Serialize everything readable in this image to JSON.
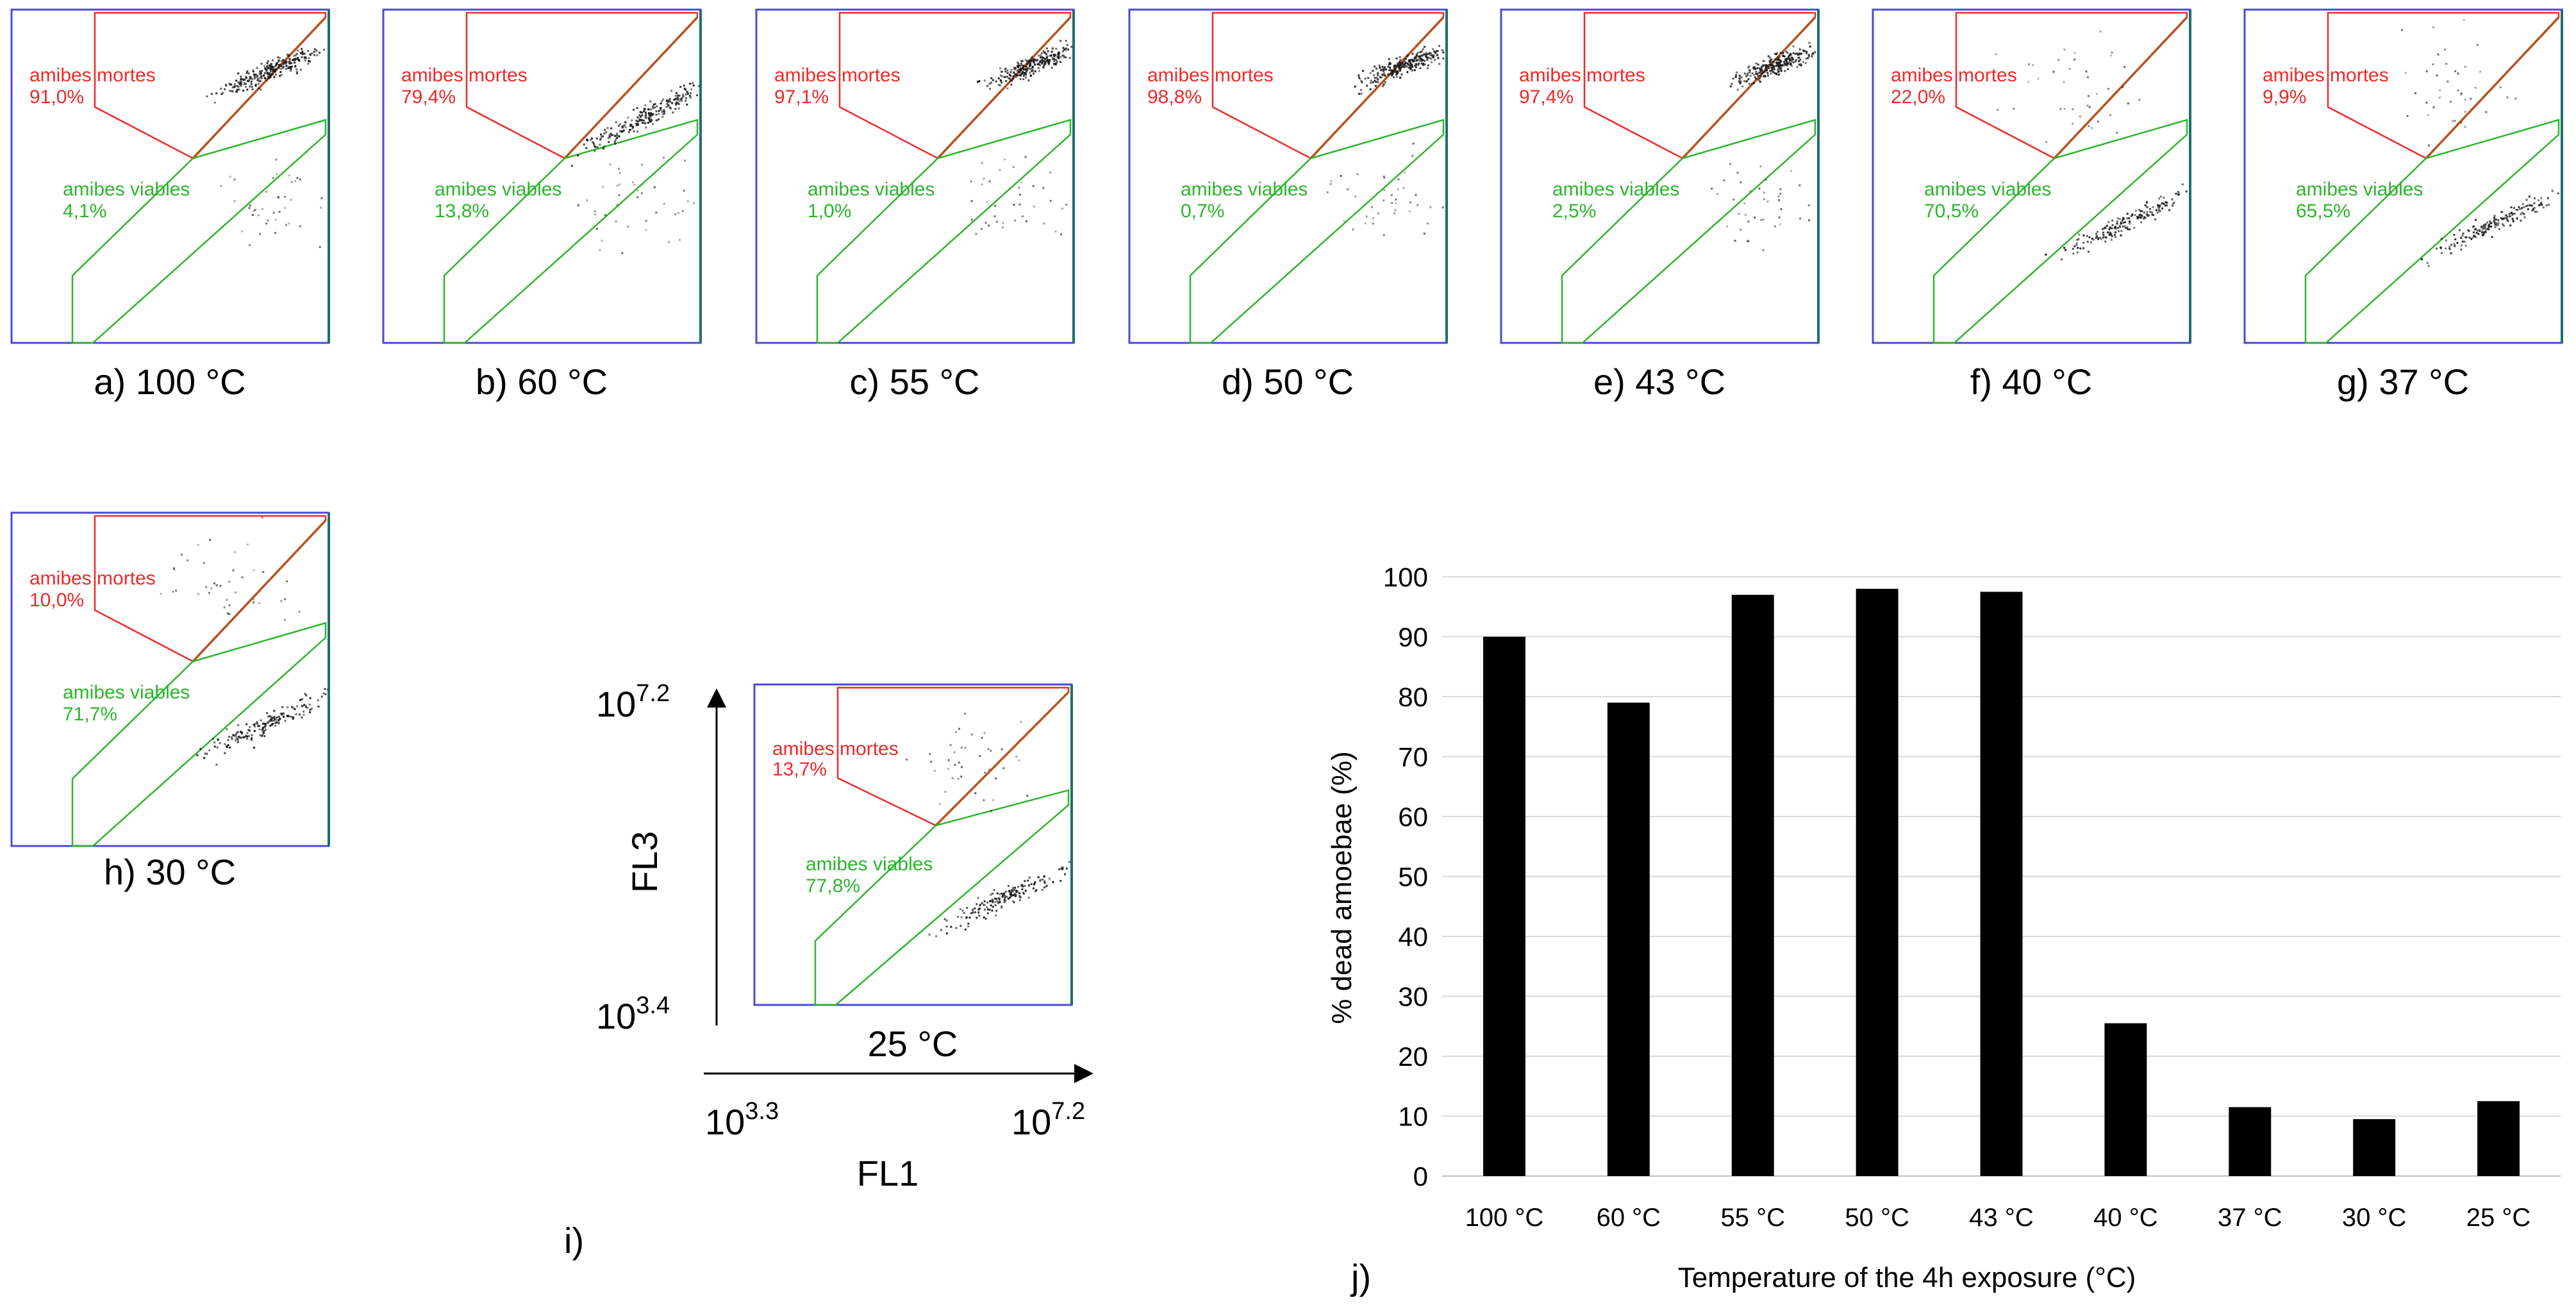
{
  "colors": {
    "dead_gate": "#ee2a2a",
    "viable_gate": "#2db52d",
    "diagonal": "#b5531f",
    "frame": "#4a4ad6",
    "bar": "#000000",
    "grid": "#d9d9d9",
    "dot": "#1a1a1a"
  },
  "gate_labels": {
    "dead": "amibes mortes",
    "viable": "amibes viables"
  },
  "panels": [
    {
      "caption": "a) 100 °C",
      "dead_pct": "91,0%",
      "viable_pct": "4,1%",
      "cluster": "dead-upper"
    },
    {
      "caption": "b) 60 °C",
      "dead_pct": "79,4%",
      "viable_pct": "13,8%",
      "cluster": "dead-lower"
    },
    {
      "caption": "c) 55 °C",
      "dead_pct": "97,1%",
      "viable_pct": "1,0%",
      "cluster": "dead"
    },
    {
      "caption": "d) 50 °C",
      "dead_pct": "98,8%",
      "viable_pct": "0,7%",
      "cluster": "dead"
    },
    {
      "caption": "e) 43 °C",
      "dead_pct": "97,4%",
      "viable_pct": "2,5%",
      "cluster": "dead"
    },
    {
      "caption": "f) 40 °C",
      "dead_pct": "22,0%",
      "viable_pct": "70,5%",
      "cluster": "viable"
    },
    {
      "caption": "g) 37 °C",
      "dead_pct": "9,9%",
      "viable_pct": "65,5%",
      "cluster": "viable"
    },
    {
      "caption": "h) 30 °C",
      "dead_pct": "10,0%",
      "viable_pct": "71,7%",
      "cluster": "viable"
    },
    {
      "caption": "25 °C",
      "dead_pct": "13,7%",
      "viable_pct": "77,8%",
      "cluster": "viable"
    }
  ],
  "axes_i": {
    "y_name": "FL3",
    "y_top_base": "10",
    "y_top_exp": "7.2",
    "y_bottom_base": "10",
    "y_bottom_exp": "3.4",
    "x_name": "FL1",
    "x_left_base": "10",
    "x_left_exp": "3.3",
    "x_right_base": "10",
    "x_right_exp": "7.2"
  },
  "panel_i_letter": "i)",
  "panel_j_letter": "j)",
  "chart_data": {
    "type": "bar",
    "title": "",
    "categories": [
      "100 °C",
      "60 °C",
      "55 °C",
      "50 °C",
      "43 °C",
      "40 °C",
      "37 °C",
      "30 °C",
      "25 °C"
    ],
    "values": [
      90,
      79,
      97,
      98,
      97.5,
      25.5,
      11.5,
      9.5,
      12.5
    ],
    "xlabel": "Temperature of the 4h exposure (°C)",
    "ylabel": "% dead amoebae (%)",
    "ylim": [
      0,
      100
    ],
    "yticks": [
      "0",
      "10",
      "20",
      "30",
      "40",
      "50",
      "60",
      "70",
      "80",
      "90",
      "100"
    ],
    "grid": true
  }
}
